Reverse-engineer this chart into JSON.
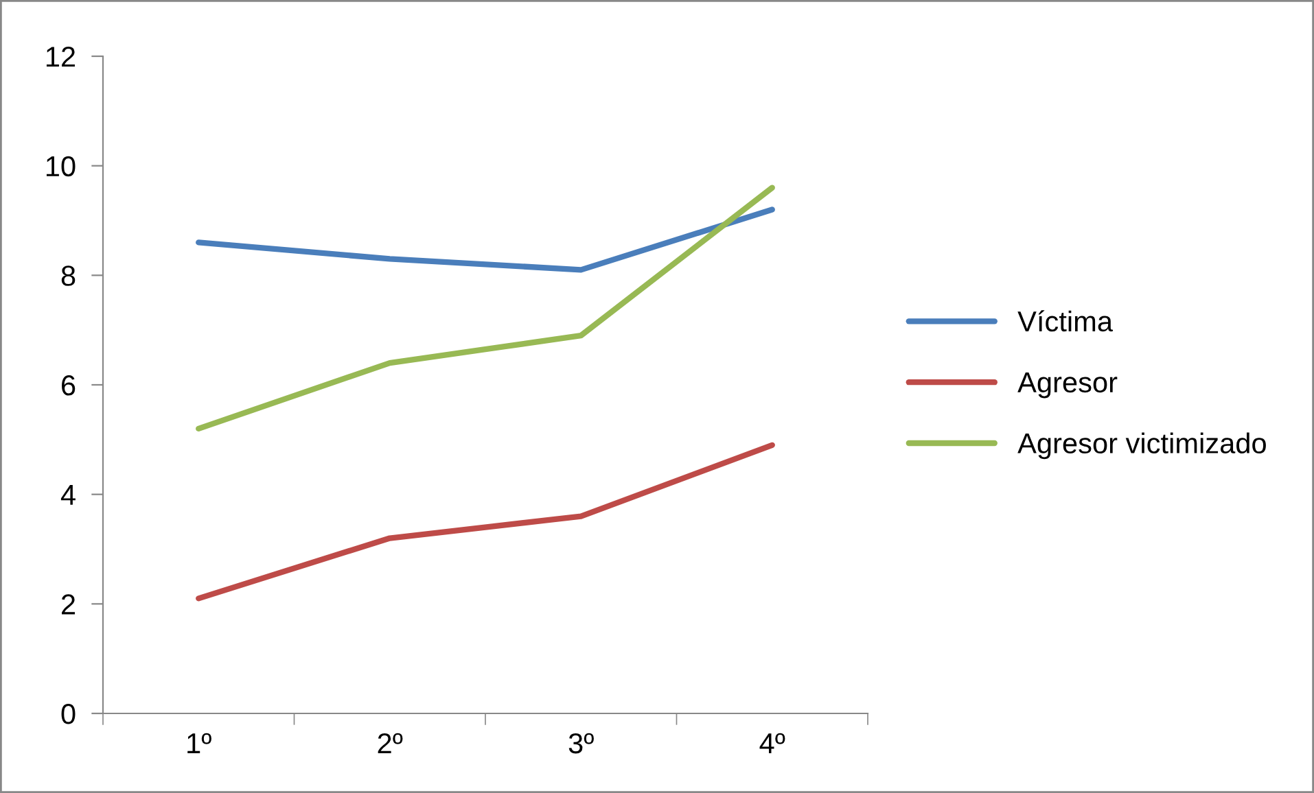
{
  "chart_data": {
    "type": "line",
    "categories": [
      "1º",
      "2º",
      "3º",
      "4º"
    ],
    "series": [
      {
        "name": "Víctima",
        "color": "#4a7ebb",
        "values": [
          8.6,
          8.3,
          8.1,
          9.2
        ]
      },
      {
        "name": "Agresor",
        "color": "#be4b48",
        "values": [
          2.1,
          3.2,
          3.6,
          4.9
        ]
      },
      {
        "name": "Agresor victimizado",
        "color": "#98b954",
        "values": [
          5.2,
          6.4,
          6.9,
          9.6
        ]
      }
    ],
    "ylim": [
      0,
      12
    ],
    "yticks": [
      0,
      2,
      4,
      6,
      8,
      10,
      12
    ],
    "grid": false,
    "legend": "right",
    "marker": "none",
    "line_style": "solid"
  }
}
